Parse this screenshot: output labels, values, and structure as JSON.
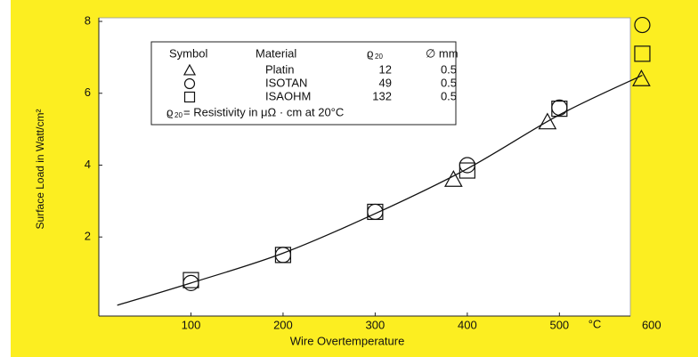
{
  "chart_data": {
    "type": "scatter",
    "x_label": "Wire Overtemperature",
    "x_unit": "°C",
    "y_label": "Surface Load in Watt/cm²",
    "xlim": [
      0,
      577
    ],
    "ylim": [
      -0.2,
      8.1
    ],
    "xticks": [
      100,
      200,
      300,
      400,
      500,
      600
    ],
    "yticks": [
      2,
      4,
      6,
      8
    ],
    "legend": {
      "headers": [
        "Symbol",
        "Material",
        "ϱ",
        "20",
        "∅ mm"
      ],
      "note": [
        "ϱ",
        "20",
        " = Resistivity in μΩ · cm at 20°C"
      ]
    },
    "series": [
      {
        "name": "Platin",
        "marker": "triangle",
        "resistivity": 12,
        "diameter": 0.5,
        "x": [
          385,
          487,
          589
        ],
        "y": [
          3.6,
          5.2,
          6.4
        ]
      },
      {
        "name": "ISOTAN",
        "marker": "circle",
        "resistivity": 49,
        "diameter": 0.5,
        "x": [
          100,
          200,
          300,
          400,
          500,
          590
        ],
        "y": [
          0.72,
          1.5,
          2.7,
          4.0,
          5.6,
          7.9
        ]
      },
      {
        "name": "ISAOHM",
        "marker": "square",
        "resistivity": 132,
        "diameter": 0.5,
        "x": [
          100,
          200,
          300,
          400,
          500,
          590
        ],
        "y": [
          0.8,
          1.5,
          2.7,
          3.85,
          5.57,
          7.1
        ]
      }
    ],
    "curve": {
      "x": [
        20,
        100,
        200,
        300,
        400,
        500,
        590
      ],
      "y": [
        0.1,
        0.72,
        1.55,
        2.65,
        3.9,
        5.4,
        6.5
      ]
    }
  }
}
